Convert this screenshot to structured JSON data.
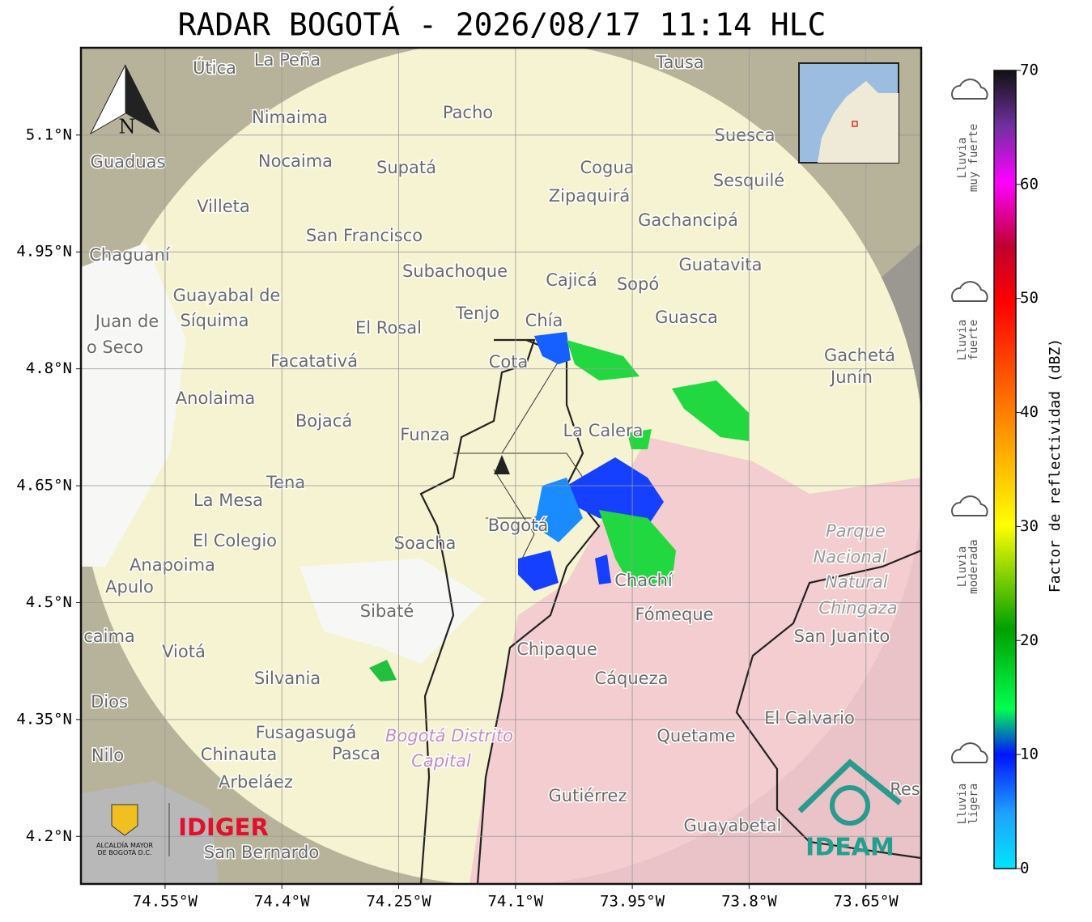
{
  "title": "RADAR BOGOTÁ - 2026/08/17 11:14 HLC",
  "map": {
    "xlim": [
      -74.658,
      -73.579
    ],
    "ylim": [
      4.139,
      5.212
    ],
    "xticks": [
      {
        "value": -74.55,
        "label": "74.55°W"
      },
      {
        "value": -74.4,
        "label": "74.4°W"
      },
      {
        "value": -74.25,
        "label": "74.25°W"
      },
      {
        "value": -74.1,
        "label": "74.1°W"
      },
      {
        "value": -73.95,
        "label": "73.95°W"
      },
      {
        "value": -73.8,
        "label": "73.8°W"
      },
      {
        "value": -73.65,
        "label": "73.65°W"
      }
    ],
    "yticks": [
      {
        "value": 5.1,
        "label": "5.1°N"
      },
      {
        "value": 4.95,
        "label": "4.95°N"
      },
      {
        "value": 4.8,
        "label": "4.8°N"
      },
      {
        "value": 4.65,
        "label": "4.65°N"
      },
      {
        "value": 4.5,
        "label": "4.5°N"
      },
      {
        "value": 4.35,
        "label": "4.35°N"
      },
      {
        "value": 4.2,
        "label": "4.2°N"
      }
    ],
    "compass": "N",
    "places": [
      "La Peña",
      "Útica",
      "Tausa",
      "Pacho",
      "Nimaima",
      "Suesca",
      "Guaduas",
      "Nocaima",
      "Supatá",
      "Cogua",
      "Sesquilé",
      "Zipaquirá",
      "Villeta",
      "Gachancipá",
      "San Francisco",
      "Chaguaní",
      "Guatavita",
      "Subachoque",
      "Cajicá",
      "Sopó",
      "Guayabal de",
      "Síquima",
      "Tenjo",
      "Guasca",
      "Chía",
      "Juan de",
      "El Rosal",
      "o Seco",
      "Facatativá",
      "Cota",
      "Gachetá",
      "Junín",
      "Anolaima",
      "Bojacá",
      "La Calera",
      "Funza",
      "Tena",
      "La Mesa",
      "Parque",
      "Nacional",
      "El Colegio",
      "Soacha",
      "Bogotá",
      "Anapoima",
      "Chachí",
      "Natural",
      "Apulo",
      "Chingaza",
      "Fómeque",
      "Sibaté",
      "San Juanito",
      "caima",
      "Viotá",
      "Chipaque",
      "Silvania",
      "Cáqueza",
      "Dios",
      "El Calvario",
      "Fusagasugá",
      "Bogotá Distrito",
      "Quetame",
      "Nilo",
      "Chinauta",
      "Pasca",
      "Capital",
      "Arbeláez",
      "Gutiérrez",
      "Res",
      "Guayabetal",
      "San Bernardo"
    ],
    "logos": {
      "alcaldia": [
        "ALCALDÍA MAYOR",
        "DE BOGOTÁ D.C."
      ],
      "idiger": "IDIGER",
      "ideam": "IDEAM"
    }
  },
  "colorbar": {
    "label": "Factor de reflectividad (dBZ)",
    "lim": [
      0,
      70
    ],
    "ticks": [
      0,
      10,
      20,
      30,
      40,
      50,
      60,
      70
    ],
    "intensity": [
      [
        "Lluvia",
        "muy fuerte"
      ],
      [
        "Lluvia",
        "fuerte"
      ],
      [
        "Lluvia",
        "moderada"
      ],
      [
        "Lluvia",
        "ligera"
      ]
    ]
  }
}
